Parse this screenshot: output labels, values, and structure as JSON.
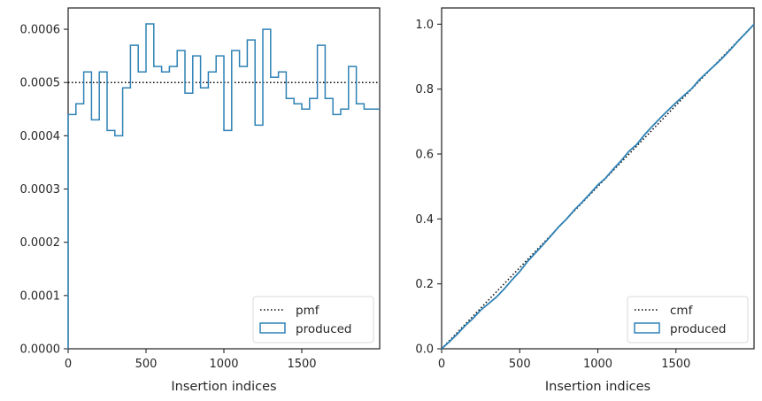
{
  "chart_data": [
    {
      "type": "step-histogram",
      "xlabel": "Insertion indices",
      "ylabel": "",
      "xlim": [
        0,
        2000
      ],
      "ylim": [
        0,
        0.00064
      ],
      "xticks": [
        0,
        500,
        1000,
        1500
      ],
      "xtick_labels": [
        "0",
        "500",
        "1000",
        "1500"
      ],
      "yticks": [
        0,
        0.0001,
        0.0002,
        0.0003,
        0.0004,
        0.0005,
        0.0006
      ],
      "ytick_labels": [
        "0.0000",
        "0.0001",
        "0.0002",
        "0.0003",
        "0.0004",
        "0.0005",
        "0.0006"
      ],
      "grid": false,
      "legend_position": "bottom-right",
      "bin_edges": [
        0,
        50,
        100,
        150,
        200,
        250,
        300,
        350,
        400,
        450,
        500,
        550,
        600,
        650,
        700,
        750,
        800,
        850,
        900,
        950,
        1000,
        1050,
        1100,
        1150,
        1200,
        1250,
        1300,
        1350,
        1400,
        1450,
        1500,
        1550,
        1600,
        1650,
        1700,
        1750,
        1800,
        1850,
        1900,
        1950,
        2000
      ],
      "series": [
        {
          "name": "pmf",
          "kind": "reference-line",
          "style": "dotted",
          "color": "#000000",
          "values": [
            0.0005
          ]
        },
        {
          "name": "produced",
          "kind": "step",
          "color": "#2f82b5",
          "values": [
            0.00044,
            0.00046,
            0.00052,
            0.00043,
            0.00052,
            0.00041,
            0.0004,
            0.00049,
            0.00057,
            0.00052,
            0.00061,
            0.00053,
            0.00052,
            0.00053,
            0.00056,
            0.00048,
            0.00055,
            0.00049,
            0.00052,
            0.00055,
            0.00041,
            0.00056,
            0.00053,
            0.00058,
            0.00042,
            0.0006,
            0.00051,
            0.00052,
            0.00047,
            0.00046,
            0.00045,
            0.00047,
            0.00057,
            0.00047,
            0.00044,
            0.00045,
            0.00053,
            0.00046,
            0.00045,
            0.00045
          ]
        }
      ]
    },
    {
      "type": "line",
      "xlabel": "Insertion indices",
      "ylabel": "",
      "xlim": [
        0,
        2000
      ],
      "ylim": [
        0,
        1.05
      ],
      "xticks": [
        0,
        500,
        1000,
        1500
      ],
      "xtick_labels": [
        "0",
        "500",
        "1000",
        "1500"
      ],
      "yticks": [
        0,
        0.2,
        0.4,
        0.6,
        0.8,
        1.0
      ],
      "ytick_labels": [
        "0.0",
        "0.2",
        "0.4",
        "0.6",
        "0.8",
        "1.0"
      ],
      "grid": false,
      "legend_position": "bottom-right",
      "series": [
        {
          "name": "cmf",
          "style": "dotted",
          "color": "#000000",
          "x": [
            0,
            2000
          ],
          "y": [
            0,
            1.0
          ]
        },
        {
          "name": "produced",
          "color": "#2f82b5",
          "x": [
            0,
            50,
            100,
            150,
            200,
            250,
            300,
            350,
            400,
            450,
            500,
            550,
            600,
            650,
            700,
            750,
            800,
            850,
            900,
            950,
            1000,
            1050,
            1100,
            1150,
            1200,
            1250,
            1300,
            1350,
            1400,
            1450,
            1500,
            1550,
            1600,
            1650,
            1700,
            1750,
            1800,
            1850,
            1900,
            1950,
            2000
          ],
          "y": [
            0,
            0.022,
            0.045,
            0.071,
            0.093,
            0.119,
            0.139,
            0.159,
            0.184,
            0.212,
            0.238,
            0.269,
            0.295,
            0.321,
            0.348,
            0.376,
            0.4,
            0.428,
            0.452,
            0.478,
            0.505,
            0.526,
            0.554,
            0.58,
            0.609,
            0.63,
            0.66,
            0.686,
            0.711,
            0.735,
            0.758,
            0.78,
            0.801,
            0.829,
            0.852,
            0.874,
            0.897,
            0.922,
            0.949,
            0.974,
            1.0
          ]
        }
      ]
    }
  ]
}
